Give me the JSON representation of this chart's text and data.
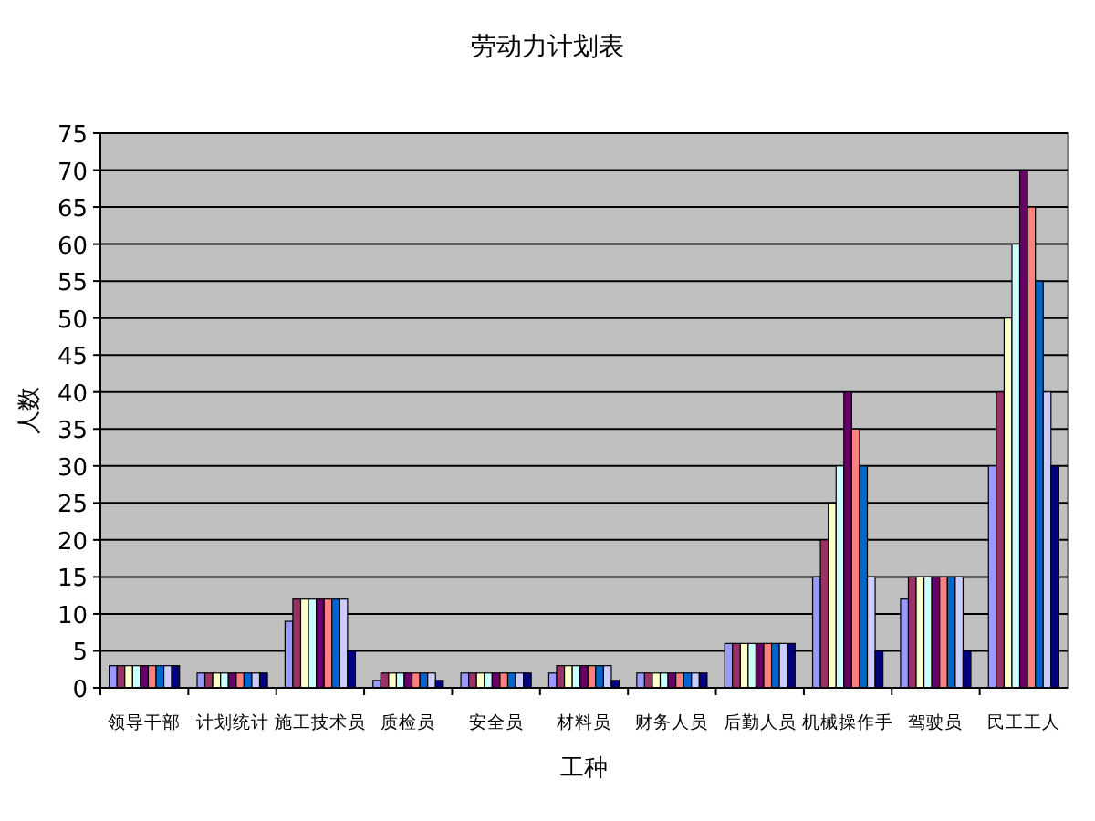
{
  "chart_data": {
    "type": "bar",
    "title": "劳动力计划表",
    "xlabel": "工种",
    "ylabel": "人数",
    "categories": [
      "领导干部",
      "计划统计",
      "施工技术员",
      "质检员",
      "安全员",
      "材料员",
      "财务人员",
      "后勤人员",
      "机械操作手",
      "驾驶员",
      "民工工人"
    ],
    "series": [
      {
        "color": "#9999ff",
        "values": [
          3,
          2,
          9,
          1,
          2,
          2,
          2,
          6,
          15,
          12,
          30
        ]
      },
      {
        "color": "#993366",
        "values": [
          3,
          2,
          12,
          2,
          2,
          3,
          2,
          6,
          20,
          15,
          40
        ]
      },
      {
        "color": "#ffffcc",
        "values": [
          3,
          2,
          12,
          2,
          2,
          3,
          2,
          6,
          25,
          15,
          50
        ]
      },
      {
        "color": "#ccffff",
        "values": [
          3,
          2,
          12,
          2,
          2,
          3,
          2,
          6,
          30,
          15,
          60
        ]
      },
      {
        "color": "#660066",
        "values": [
          3,
          2,
          12,
          2,
          2,
          3,
          2,
          6,
          40,
          15,
          70
        ]
      },
      {
        "color": "#ff8080",
        "values": [
          3,
          2,
          12,
          2,
          2,
          3,
          2,
          6,
          35,
          15,
          65
        ]
      },
      {
        "color": "#0066cc",
        "values": [
          3,
          2,
          12,
          2,
          2,
          3,
          2,
          6,
          30,
          15,
          55
        ]
      },
      {
        "color": "#ccccff",
        "values": [
          3,
          2,
          12,
          2,
          2,
          3,
          2,
          6,
          15,
          15,
          40
        ]
      },
      {
        "color": "#000080",
        "values": [
          3,
          2,
          5,
          1,
          2,
          1,
          2,
          6,
          5,
          5,
          30
        ]
      }
    ],
    "ylim": [
      0,
      75
    ],
    "yticks": [
      0,
      5,
      10,
      15,
      20,
      25,
      30,
      35,
      40,
      45,
      50,
      55,
      60,
      65,
      70,
      75
    ],
    "grid": "y"
  }
}
